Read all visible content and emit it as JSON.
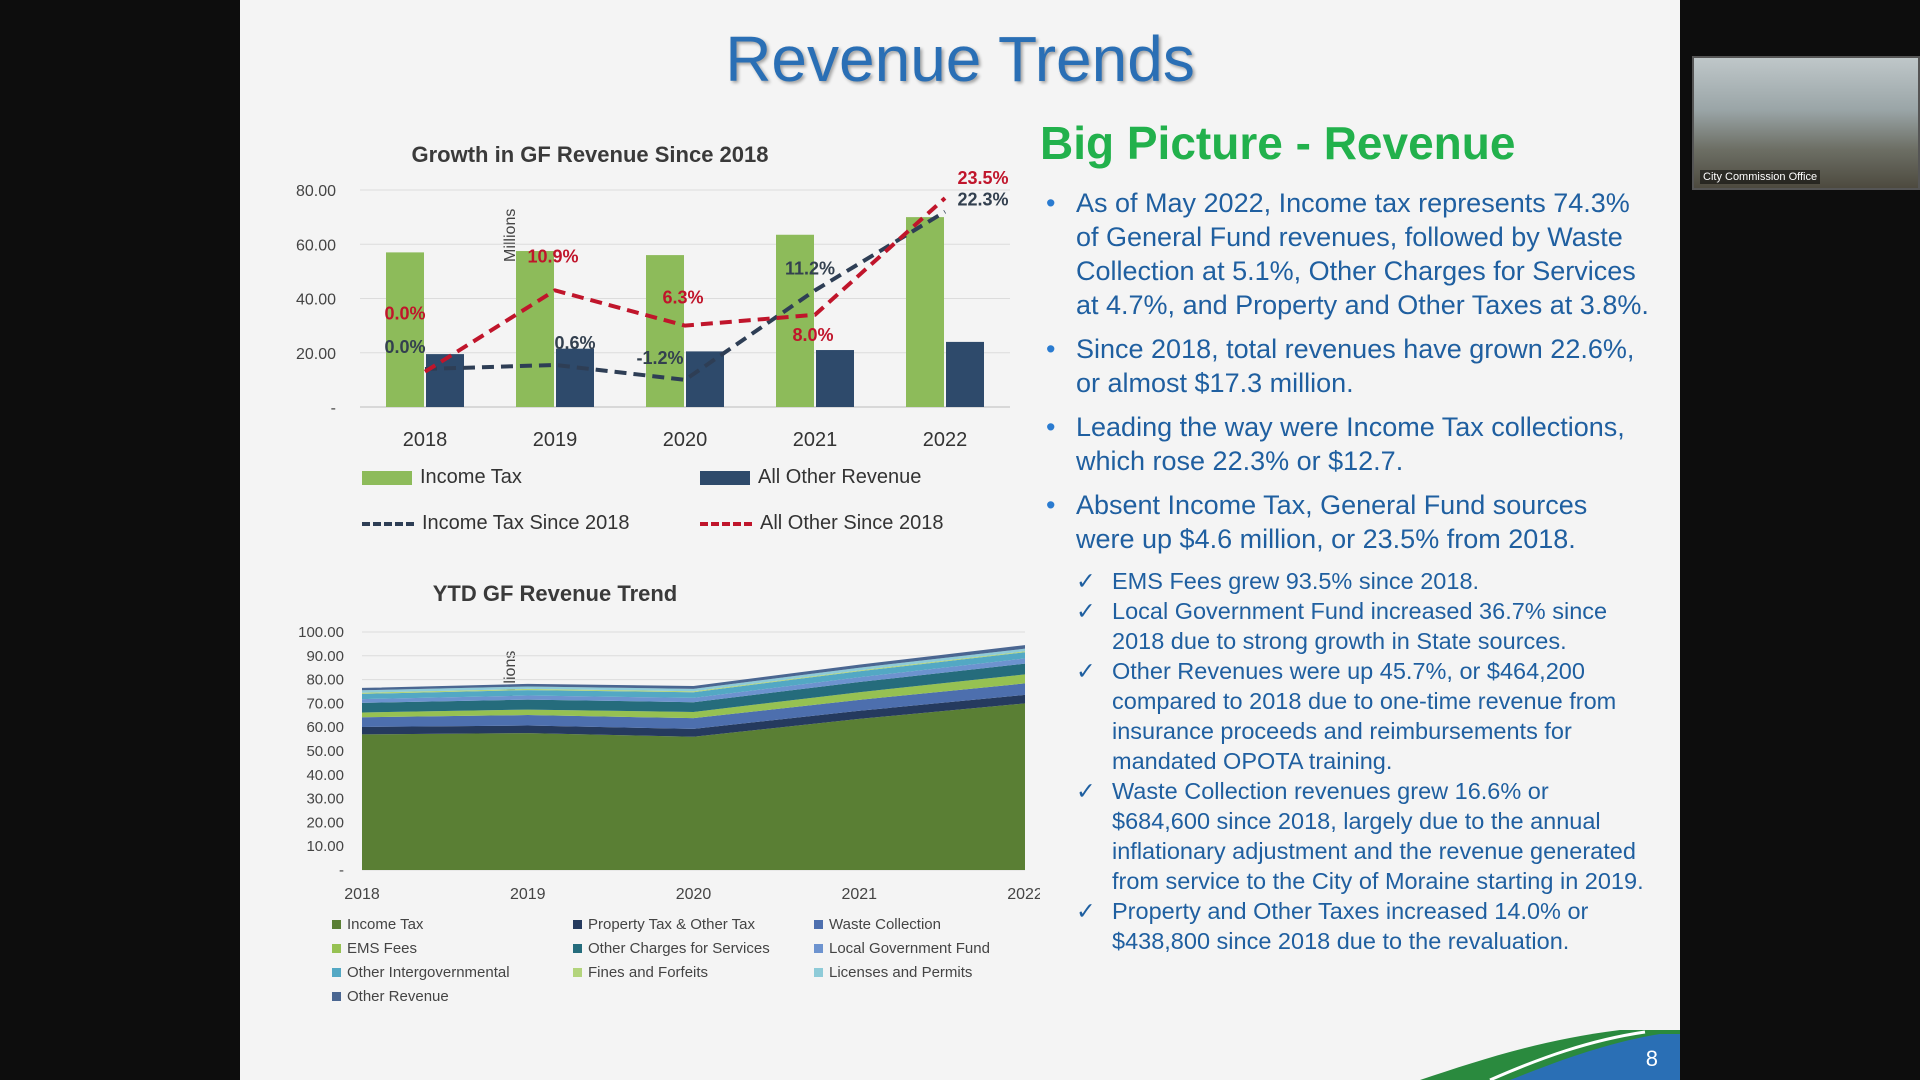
{
  "slide_title": "Revenue Trends",
  "page_number": "8",
  "video_label": "City Commission Office",
  "right_panel": {
    "title": "Big Picture - Revenue",
    "bullets": [
      "As of May 2022, Income tax represents 74.3% of General Fund revenues, followed by Waste Collection at 5.1%, Other Charges for Services at 4.7%, and Property and Other Taxes at 3.8%.",
      "Since 2018, total revenues have grown 22.6%, or almost $17.3 million.",
      "Leading the way were Income Tax collections, which rose 22.3% or $12.7.",
      "Absent Income Tax, General Fund sources were up $4.6 million, or 23.5% from 2018."
    ],
    "check_mark": "✓",
    "checks": [
      "EMS Fees grew 93.5% since 2018.",
      "Local Government Fund increased 36.7% since 2018 due to strong growth in State sources.",
      "Other Revenues were up 45.7%, or $464,200 compared to 2018 due to one-time revenue from insurance proceeds and reimbursements for mandated OPOTA training.",
      "Waste Collection revenues grew 16.6% or $684,600 since 2018, largely due to the annual inflationary adjustment and the revenue generated from service to the City of Moraine starting in 2019.",
      "Property and Other Taxes increased 14.0% or $438,800 since 2018 due to the revaluation."
    ]
  },
  "colors": {
    "income_bar": "#8dbb5a",
    "other_bar": "#2e4a6b",
    "income_line": "#2e3e55",
    "other_line": "#c0152b"
  },
  "chart_data": [
    {
      "type": "bar",
      "title": "Growth in GF Revenue Since 2018",
      "ylabel": "Millions",
      "ylim": [
        0,
        80
      ],
      "yticks": [
        "80.00",
        "60.00",
        "40.00",
        "20.00",
        "-"
      ],
      "categories": [
        "2018",
        "2019",
        "2020",
        "2021",
        "2022"
      ],
      "series": [
        {
          "name": "Income Tax",
          "kind": "bar",
          "values": [
            57,
            57.5,
            56,
            63.5,
            70
          ]
        },
        {
          "name": "All Other Revenue",
          "kind": "bar",
          "values": [
            19.5,
            21.5,
            20.5,
            21,
            24
          ]
        },
        {
          "name": "Income Tax Since 2018",
          "kind": "line-dashed",
          "values": [
            14,
            15.5,
            10,
            43,
            72
          ],
          "labels": [
            "0.0%",
            "0.6%",
            "-1.2%",
            "11.2%",
            "22.3%"
          ]
        },
        {
          "name": "All Other Since 2018",
          "kind": "line-dashed",
          "values": [
            13,
            43,
            30,
            34,
            77
          ],
          "labels": [
            "0.0%",
            "10.9%",
            "6.3%",
            "8.0%",
            "23.5%"
          ]
        }
      ],
      "legend": "bottom"
    },
    {
      "type": "area",
      "title": "YTD GF Revenue Trend",
      "ylabel": "Millions",
      "ylim": [
        0,
        100
      ],
      "yticks": [
        "100.00",
        "90.00",
        "80.00",
        "70.00",
        "60.00",
        "50.00",
        "40.00",
        "30.00",
        "20.00",
        "10.00",
        "-"
      ],
      "x": [
        "2018",
        "2019",
        "2020",
        "2021",
        "2022"
      ],
      "series": [
        {
          "name": "Income Tax",
          "color": "#5a7f34",
          "values": [
            57,
            57.5,
            56,
            63.5,
            70
          ]
        },
        {
          "name": "Property Tax & Other Tax",
          "color": "#253a5e",
          "values": [
            3.1,
            3.2,
            3.3,
            3.4,
            3.6
          ]
        },
        {
          "name": "Waste Collection",
          "color": "#4d6fae",
          "values": [
            4.1,
            4.4,
            4.5,
            4.6,
            4.8
          ]
        },
        {
          "name": "EMS Fees",
          "color": "#96c152",
          "values": [
            2.0,
            2.3,
            2.6,
            3.2,
            3.8
          ]
        },
        {
          "name": "Other Charges for Services",
          "color": "#256c7c",
          "values": [
            4.0,
            4.2,
            4.1,
            4.3,
            4.5
          ]
        },
        {
          "name": "Local Government Fund",
          "color": "#6d93cf",
          "values": [
            1.6,
            1.7,
            1.8,
            2.0,
            2.2
          ]
        },
        {
          "name": "Other Intergovernmental",
          "color": "#53a8c4",
          "values": [
            2.2,
            2.3,
            2.4,
            2.5,
            2.6
          ]
        },
        {
          "name": "Fines and Forfeits",
          "color": "#b3d47c",
          "values": [
            0.5,
            0.5,
            0.4,
            0.4,
            0.4
          ]
        },
        {
          "name": "Licenses and Permits",
          "color": "#8ecbd8",
          "values": [
            1.0,
            1.0,
            1.0,
            1.1,
            1.1
          ]
        },
        {
          "name": "Other Revenue",
          "color": "#4a6691",
          "values": [
            1.0,
            1.1,
            1.2,
            1.3,
            1.5
          ]
        }
      ],
      "legend": "bottom"
    }
  ]
}
